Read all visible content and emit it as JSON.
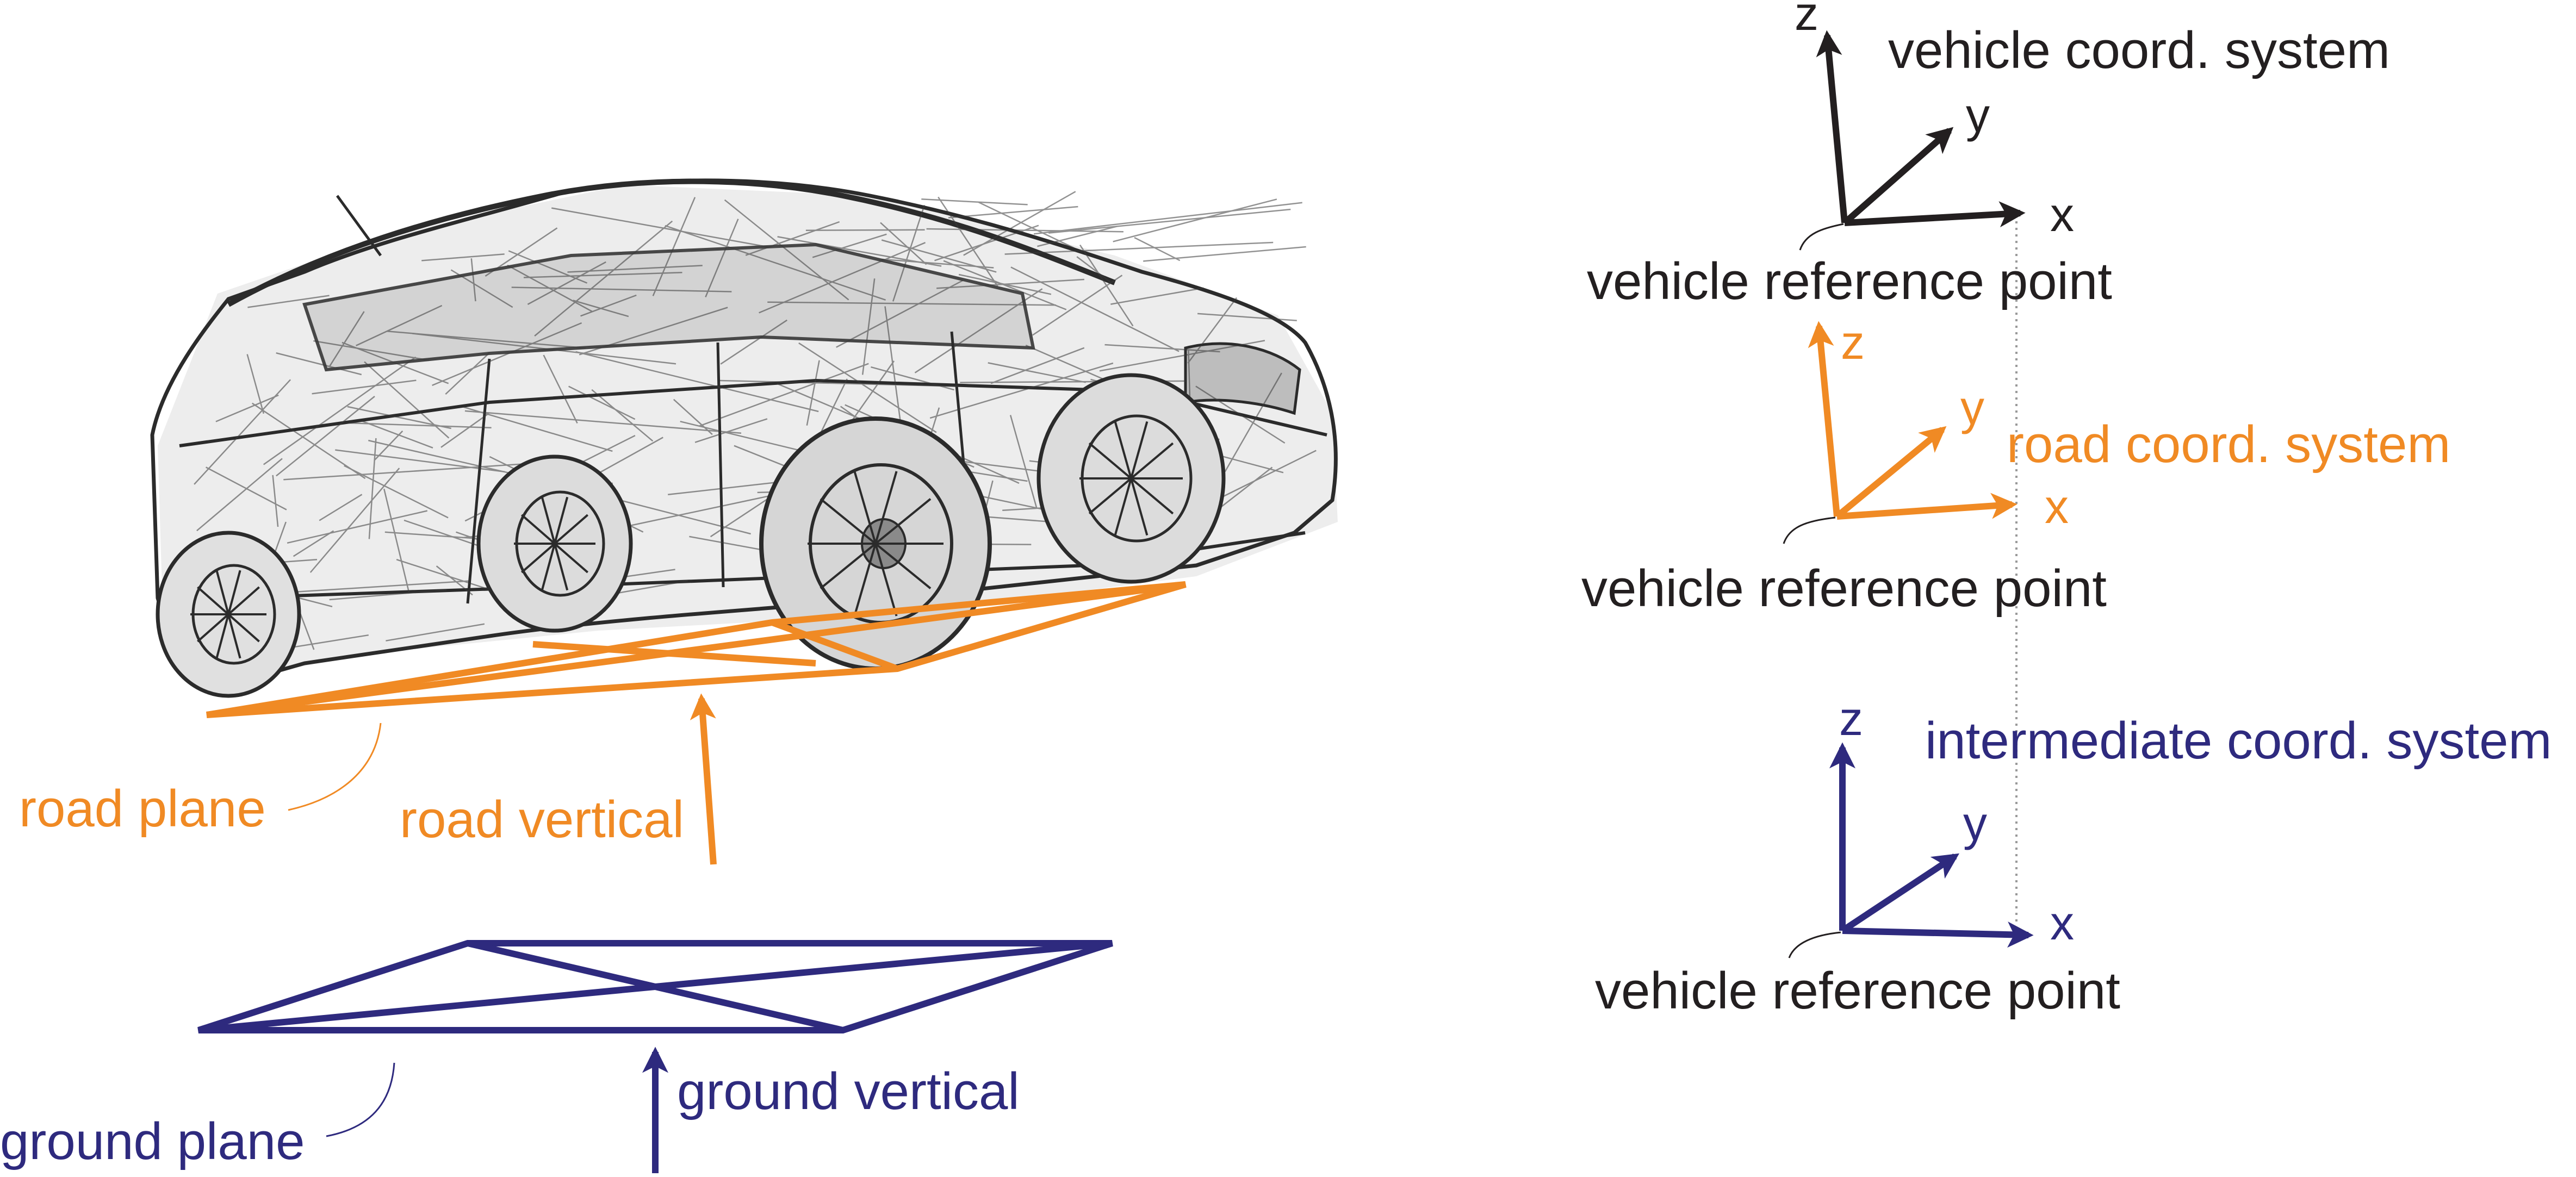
{
  "colors": {
    "vehicle": "#231f20",
    "road": "#f08a24",
    "intermediate": "#2e2a7e",
    "ground": "#2e2a7e",
    "car_wire": "#3a3a3a",
    "car_shade": "#d9d9d9",
    "guide": "#999999"
  },
  "left": {
    "road_plane": "road plane",
    "road_vertical": "road vertical",
    "ground_plane": "ground plane",
    "ground_vertical": "ground vertical"
  },
  "right": {
    "vehicle_system": {
      "title": "vehicle coord. system",
      "x": "x",
      "y": "y",
      "z": "z",
      "ref_point": "vehicle reference point"
    },
    "road_system": {
      "title": "road coord. system",
      "x": "x",
      "y": "y",
      "z": "z",
      "ref_point": "vehicle reference point"
    },
    "intermediate_system": {
      "title": "intermediate coord. system",
      "x": "x",
      "y": "y",
      "z": "z",
      "ref_point": "vehicle reference point"
    }
  }
}
